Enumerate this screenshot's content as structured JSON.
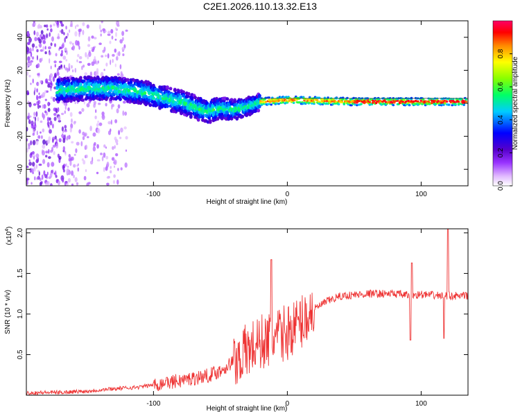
{
  "title": "C2E1.2026.110.13.32.E13",
  "chart_data": [
    {
      "type": "heatmap",
      "name": "spectrogram",
      "xlabel": "Height of straight line (km)",
      "ylabel": "Frequency (Hz)",
      "xlim": [
        -195,
        135
      ],
      "ylim": [
        -50,
        50
      ],
      "xticks": [
        -100,
        0,
        100
      ],
      "yticks": [
        -40,
        -20,
        0,
        20,
        40
      ],
      "colorbar": {
        "label": "Normalized spectral amplitude",
        "range": [
          0,
          1
        ],
        "ticks": [
          0.0,
          0.2,
          0.4,
          0.6,
          0.8
        ]
      },
      "trend_points": [
        {
          "x": -170,
          "y": 8
        },
        {
          "x": -150,
          "y": 9
        },
        {
          "x": -130,
          "y": 9
        },
        {
          "x": -110,
          "y": 7
        },
        {
          "x": -100,
          "y": 5
        },
        {
          "x": -90,
          "y": 3
        },
        {
          "x": -80,
          "y": 1
        },
        {
          "x": -70,
          "y": -2
        },
        {
          "x": -60,
          "y": -5
        },
        {
          "x": -50,
          "y": -3
        },
        {
          "x": -40,
          "y": -4
        },
        {
          "x": -30,
          "y": -2
        },
        {
          "x": -20,
          "y": 1
        },
        {
          "x": 0,
          "y": 2
        },
        {
          "x": 50,
          "y": 1
        },
        {
          "x": 100,
          "y": 1
        },
        {
          "x": 135,
          "y": 1
        }
      ]
    },
    {
      "type": "line",
      "name": "snr",
      "xlabel": "Height of straight line (km)",
      "ylabel": "SNR (10 * v/v)",
      "multiplier_label": "(x10",
      "multiplier_exp": "4",
      "xlim": [
        -195,
        135
      ],
      "ylim": [
        0,
        20500
      ],
      "xticks": [
        -100,
        0,
        100
      ],
      "yticks": [
        0.5,
        1.0,
        1.5,
        2.0
      ],
      "color": "#ee3333",
      "series": [
        {
          "name": "SNR",
          "points": [
            {
              "x": -195,
              "y": 300
            },
            {
              "x": -170,
              "y": 350
            },
            {
              "x": -150,
              "y": 500
            },
            {
              "x": -130,
              "y": 800
            },
            {
              "x": -110,
              "y": 1000
            },
            {
              "x": -100,
              "y": 1300
            },
            {
              "x": -80,
              "y": 1800
            },
            {
              "x": -60,
              "y": 2400
            },
            {
              "x": -50,
              "y": 3000
            },
            {
              "x": -40,
              "y": 4200
            },
            {
              "x": -30,
              "y": 5500
            },
            {
              "x": -20,
              "y": 6500
            },
            {
              "x": -10,
              "y": 7000
            },
            {
              "x": 0,
              "y": 7800
            },
            {
              "x": 10,
              "y": 9000
            },
            {
              "x": 20,
              "y": 10600
            },
            {
              "x": 30,
              "y": 11600
            },
            {
              "x": 40,
              "y": 12200
            },
            {
              "x": 60,
              "y": 12500
            },
            {
              "x": 80,
              "y": 12500
            },
            {
              "x": 90,
              "y": 12300
            },
            {
              "x": 100,
              "y": 12400
            },
            {
              "x": 110,
              "y": 12300
            },
            {
              "x": 135,
              "y": 12200
            }
          ]
        }
      ],
      "spikes": [
        {
          "x": -12,
          "y": 16700
        },
        {
          "x": -90,
          "y": 2200
        },
        {
          "x": 92,
          "y": 6800
        },
        {
          "x": 93,
          "y": 16300
        },
        {
          "x": 117,
          "y": 7000
        },
        {
          "x": 120,
          "y": 20500
        }
      ]
    }
  ]
}
